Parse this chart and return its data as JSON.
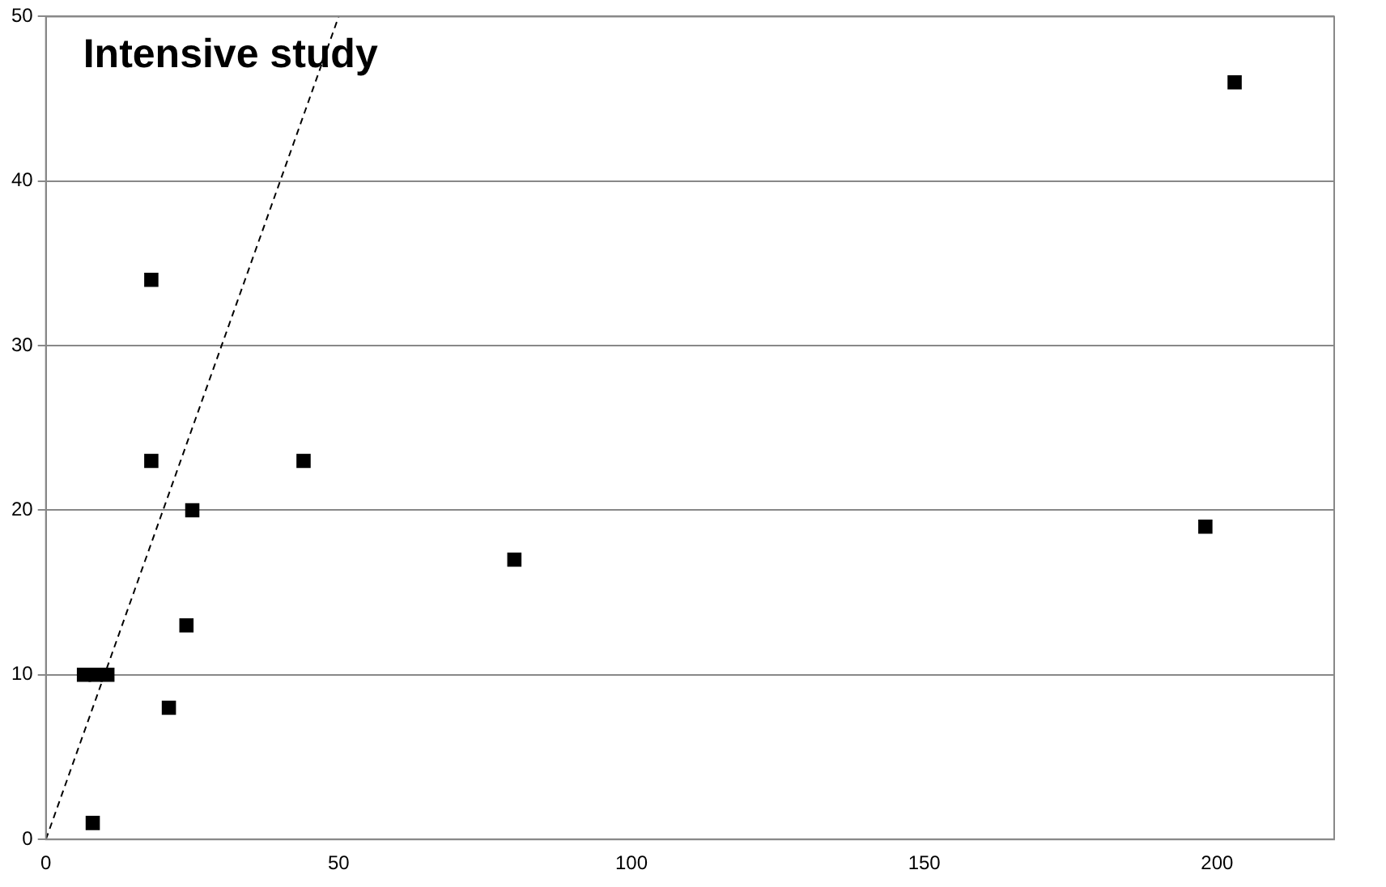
{
  "chart_data": {
    "type": "scatter",
    "annotations": [
      "Intensive study"
    ],
    "xlim": [
      0,
      220
    ],
    "xticks": [
      0,
      50,
      100,
      150,
      200
    ],
    "ylim": [
      0,
      50
    ],
    "yticks": [
      0,
      10,
      20,
      30,
      40,
      50
    ],
    "grid": "y",
    "marker": "square",
    "series": [
      {
        "type": "scatter",
        "color": "#000000",
        "x": [
          8,
          6.5,
          8.5,
          10.5,
          21,
          18,
          18,
          24,
          25,
          44,
          80,
          198,
          203
        ],
        "values": [
          1,
          10,
          10,
          10,
          8,
          34,
          23,
          13,
          20,
          23,
          17,
          19,
          46
        ]
      },
      {
        "type": "line",
        "color": "#000000",
        "line_style": "dashed",
        "marker": "none",
        "x": [
          0,
          50
        ],
        "values": [
          0,
          50
        ]
      }
    ]
  }
}
